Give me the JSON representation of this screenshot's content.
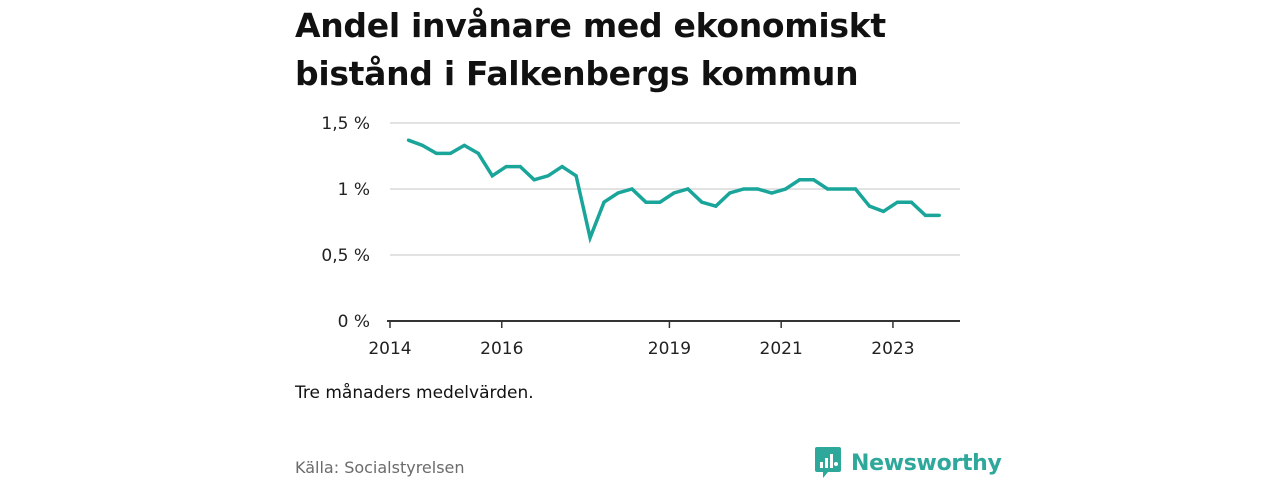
{
  "chart_data": {
    "type": "line",
    "title": "Andel invånare med ekonomiskt bistånd i Falkenbergs kommun",
    "ylim": [
      0,
      1.5
    ],
    "xlim": [
      2014,
      2024.2
    ],
    "yticks": [
      {
        "value": 0,
        "label": "0 %"
      },
      {
        "value": 0.5,
        "label": "0,5 %"
      },
      {
        "value": 1,
        "label": "1 %"
      },
      {
        "value": 1.5,
        "label": "1,5 %"
      }
    ],
    "xticks": [
      {
        "value": 2014,
        "label": "2014"
      },
      {
        "value": 2016,
        "label": "2016"
      },
      {
        "value": 2019,
        "label": "2019"
      },
      {
        "value": 2021,
        "label": "2021"
      },
      {
        "value": 2023,
        "label": "2023"
      }
    ],
    "grid": true,
    "line_color": "#1aa59a",
    "series": [
      {
        "x": [
          2014.33,
          2014.58,
          2014.83,
          2015.08,
          2015.33,
          2015.58,
          2015.83,
          2016.08,
          2016.33,
          2016.58,
          2016.83,
          2017.08,
          2017.33,
          2017.58,
          2017.83,
          2018.08,
          2018.33,
          2018.58,
          2018.83,
          2019.08,
          2019.33,
          2019.58,
          2019.83,
          2020.08,
          2020.33,
          2020.58,
          2020.83,
          2021.08,
          2021.33,
          2021.58,
          2021.83,
          2022.08,
          2022.33,
          2022.58,
          2022.83,
          2023.08,
          2023.33,
          2023.58,
          2023.83
        ],
        "values": [
          1.37,
          1.33,
          1.27,
          1.27,
          1.33,
          1.27,
          1.1,
          1.17,
          1.17,
          1.07,
          1.1,
          1.17,
          1.1,
          0.63,
          0.9,
          0.97,
          1.0,
          0.9,
          0.9,
          0.97,
          1.0,
          0.9,
          0.87,
          0.97,
          1.0,
          1.0,
          0.97,
          1.0,
          1.07,
          1.07,
          1.0,
          1.0,
          1.0,
          0.87,
          0.83,
          0.9,
          0.9,
          0.8,
          0.8
        ]
      }
    ]
  },
  "note": "Tre månaders medelvärden.",
  "source": "Källa: Socialstyrelsen",
  "brand": {
    "name": "Newsworthy",
    "color": "#2ea89b"
  }
}
